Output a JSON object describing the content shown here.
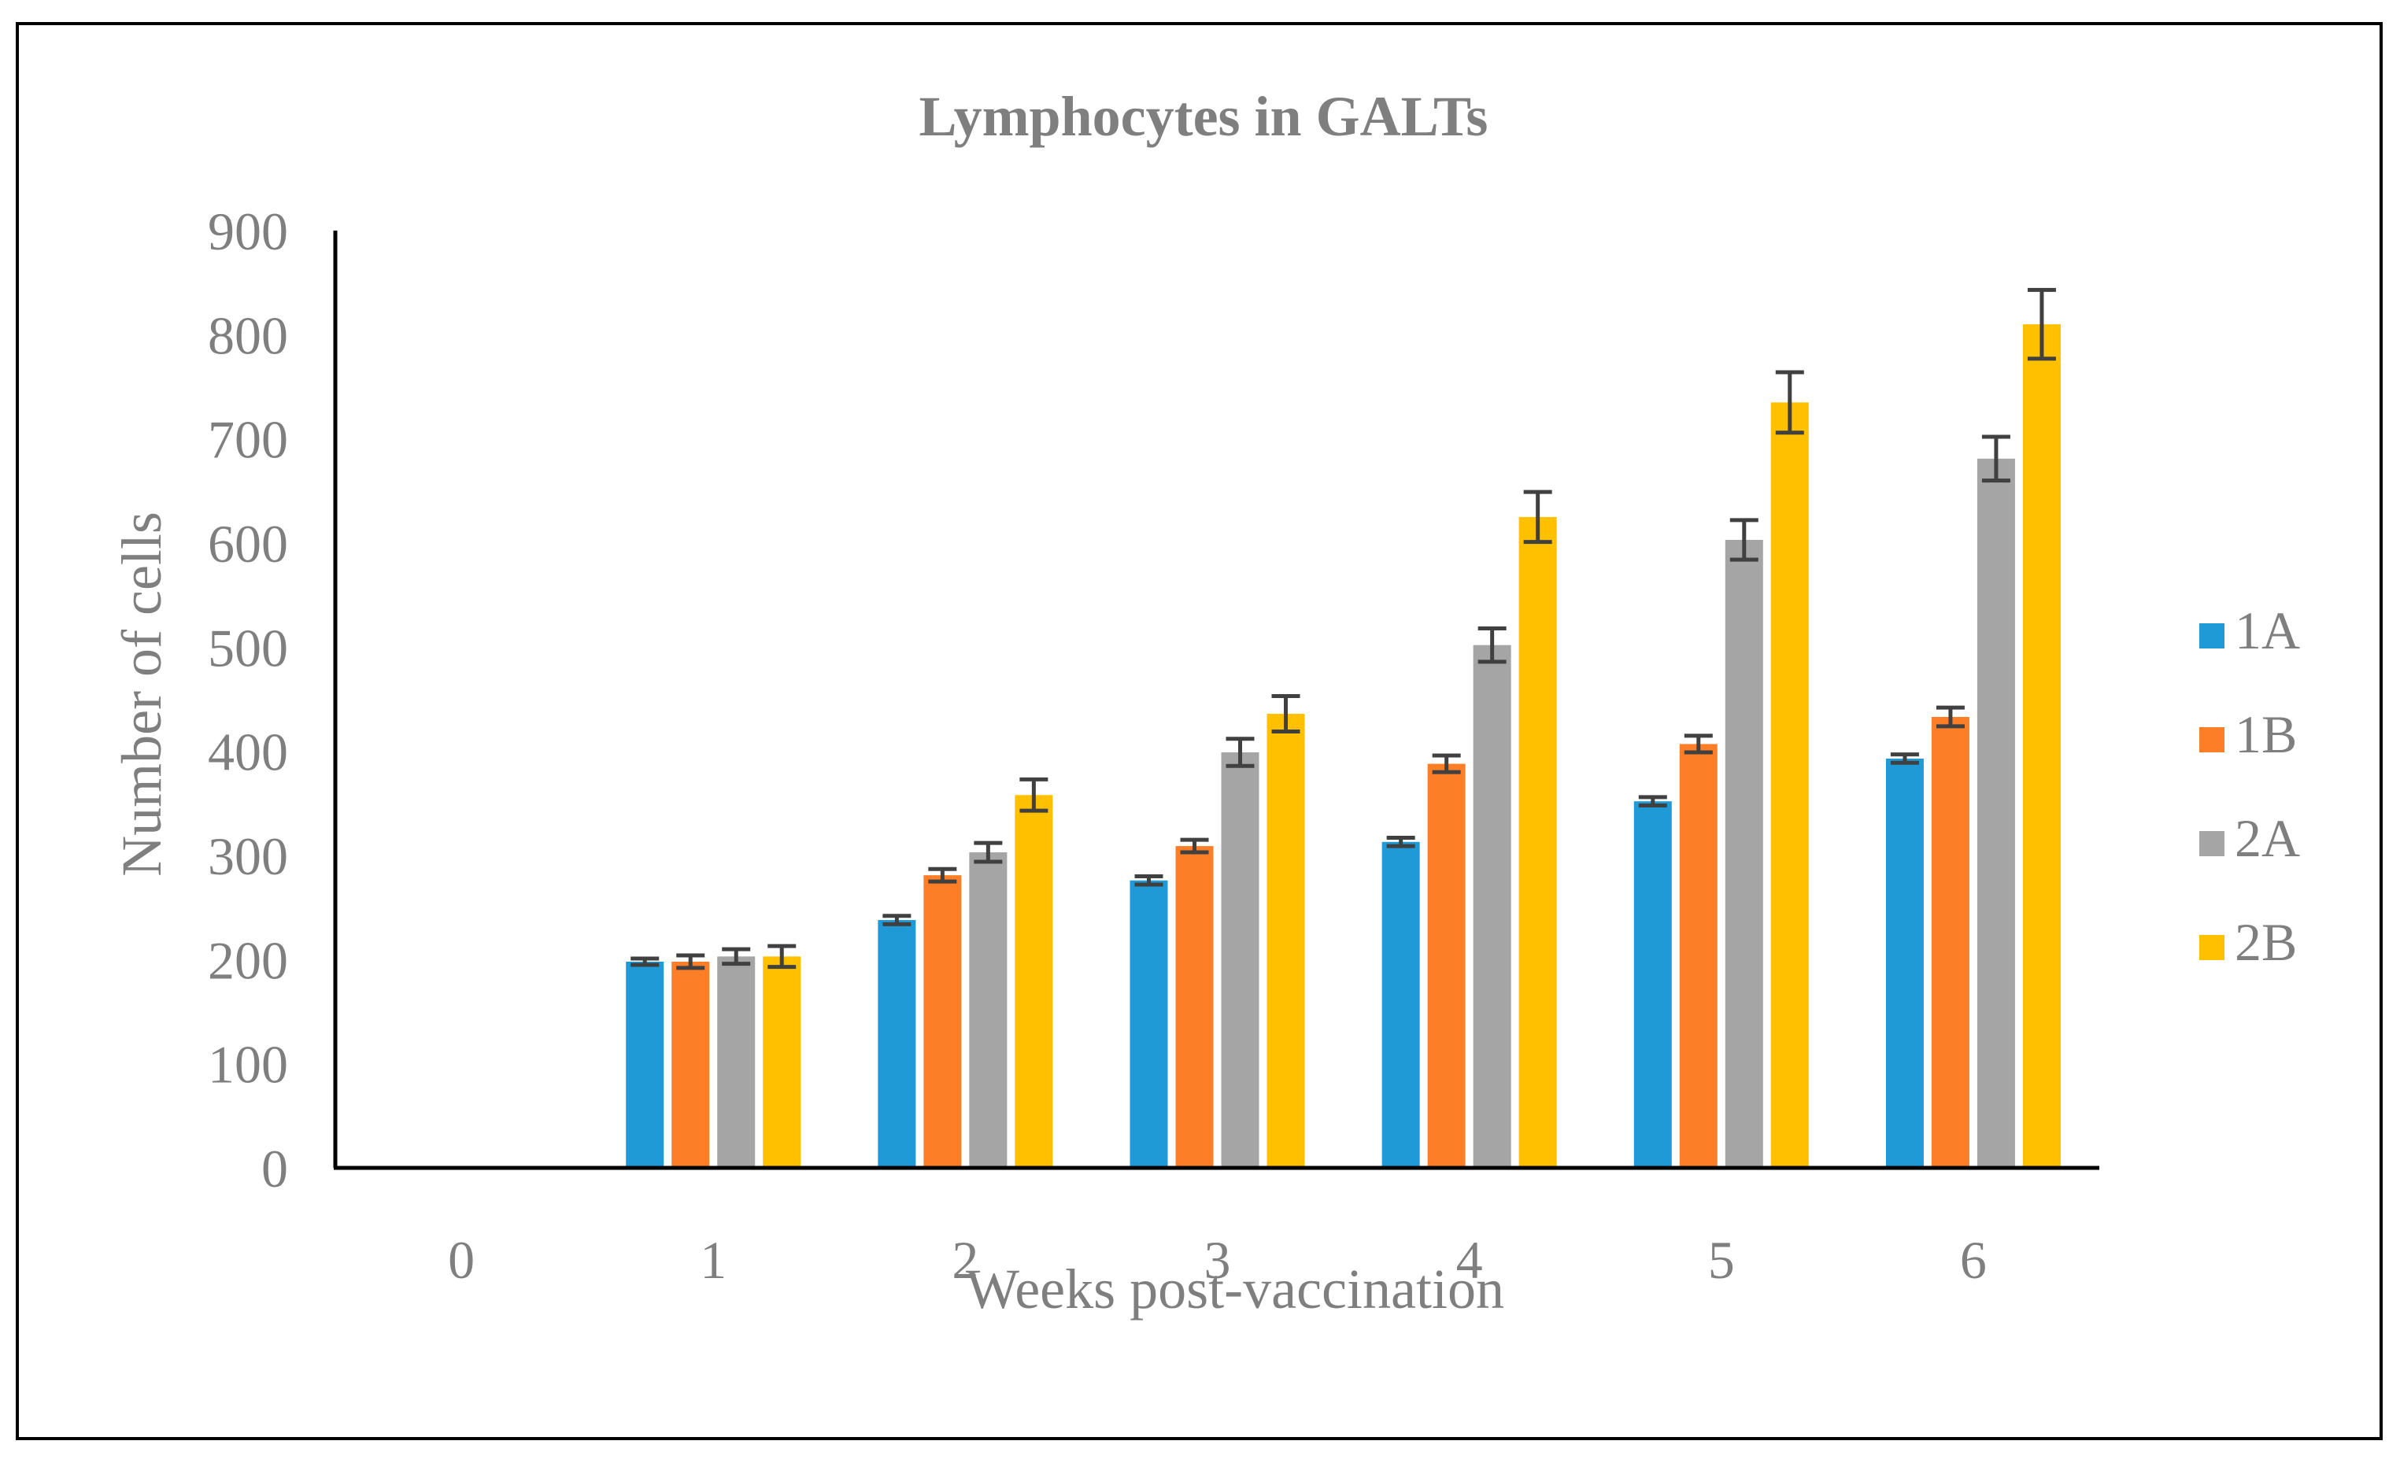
{
  "chart_data": {
    "type": "bar",
    "title": "Lymphocytes in GALTs",
    "xlabel": "Weeks post-vaccination",
    "ylabel": "Number of cells",
    "ylim": [
      0,
      900
    ],
    "yticks": [
      0,
      100,
      200,
      300,
      400,
      500,
      600,
      700,
      800,
      900
    ],
    "grid": false,
    "legend_position": "right",
    "categories": [
      "0",
      "1",
      "2",
      "3",
      "4",
      "5",
      "6"
    ],
    "series": [
      {
        "name": "1A",
        "color": "#1f9ad6",
        "values": [
          0,
          198,
          238,
          276,
          313,
          352,
          393
        ],
        "errors": [
          0,
          3,
          4,
          4,
          4,
          4,
          4
        ]
      },
      {
        "name": "1B",
        "color": "#fc7f28",
        "values": [
          0,
          198,
          281,
          309,
          388,
          407,
          433
        ],
        "errors": [
          0,
          6,
          6,
          6,
          8,
          8,
          9
        ]
      },
      {
        "name": "2A",
        "color": "#a5a5a5",
        "values": [
          0,
          203,
          303,
          399,
          502,
          603,
          681
        ],
        "errors": [
          0,
          7,
          9,
          13,
          16,
          19,
          21
        ]
      },
      {
        "name": "2B",
        "color": "#ffc000",
        "values": [
          0,
          203,
          358,
          436,
          625,
          735,
          810
        ],
        "errors": [
          0,
          10,
          15,
          17,
          24,
          29,
          33
        ]
      }
    ],
    "error_bar_color": "#404040"
  },
  "colors": {
    "text": "#7f7f7f",
    "title": "#7f7f7f",
    "axis": "#000000"
  }
}
